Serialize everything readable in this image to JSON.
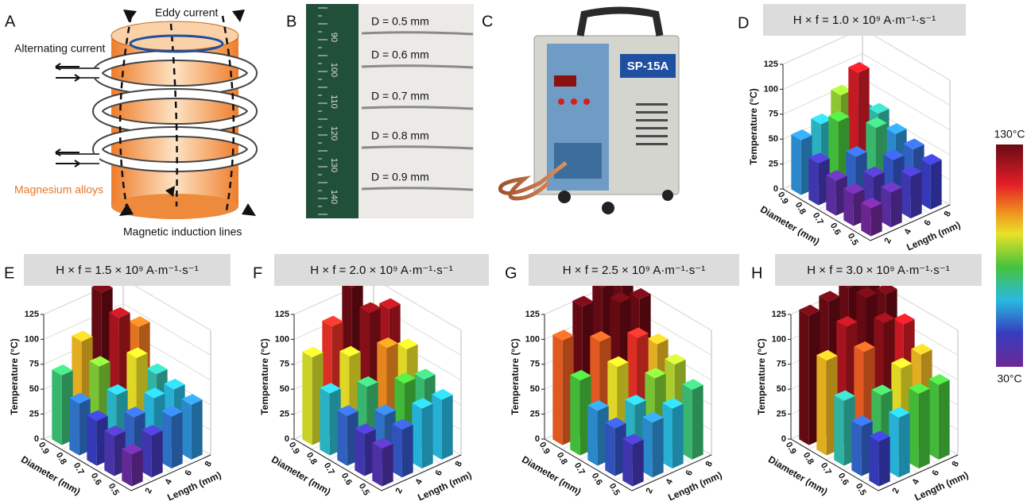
{
  "panel_a": {
    "letter": "A",
    "eddy": "Eddy current",
    "alternating": "Alternating current",
    "alloy": "Magnesium alloys",
    "lines": "Magnetic induction lines"
  },
  "panel_b": {
    "letter": "B",
    "wires": [
      "D = 0.5 mm",
      "D = 0.6 mm",
      "D = 0.7 mm",
      "D = 0.8 mm",
      "D = 0.9 mm"
    ],
    "ruler": [
      "90",
      "100",
      "110",
      "120",
      "130",
      "140"
    ]
  },
  "panel_c": {
    "letter": "C",
    "model": "SP-15A"
  },
  "colorbar": {
    "range": [
      30,
      130
    ],
    "ticks": [
      {
        "value": 130,
        "label": "130°C"
      },
      {
        "value": 30,
        "label": "30°C"
      }
    ]
  },
  "chart_data": [
    {
      "type": "bar3d",
      "letter": "D",
      "title": "H × f = 1.0 × 10⁹ A·m⁻¹·s⁻¹",
      "zlabel": "Temperature (°C)",
      "xlabel": "Diameter (mm)",
      "ylabel": "Length (mm)",
      "diameters": [
        0.9,
        0.8,
        0.7,
        0.6,
        0.5
      ],
      "lengths": [
        2,
        4,
        6,
        8
      ],
      "zlim": [
        0,
        125
      ],
      "zticks": [
        0,
        25,
        50,
        75,
        100,
        125
      ],
      "values": [
        [
          55,
          62,
          82,
          58
        ],
        [
          42,
          75,
          115,
          65
        ],
        [
          35,
          50,
          70,
          55
        ],
        [
          32,
          40,
          48,
          50
        ],
        [
          28,
          35,
          42,
          45
        ]
      ]
    },
    {
      "type": "bar3d",
      "letter": "E",
      "title": "H × f = 1.5 × 10⁹ A·m⁻¹·s⁻¹",
      "zlabel": "Temperature (°C)",
      "xlabel": "Diameter (mm)",
      "ylabel": "Length (mm)",
      "diameters": [
        0.9,
        0.8,
        0.7,
        0.6,
        0.5
      ],
      "lengths": [
        2,
        4,
        6,
        8
      ],
      "zlim": [
        0,
        125
      ],
      "zticks": [
        0,
        25,
        50,
        75,
        100,
        125
      ],
      "values": [
        [
          70,
          95,
          135,
          85
        ],
        [
          52,
          80,
          120,
          102
        ],
        [
          45,
          62,
          90,
          65
        ],
        [
          40,
          50,
          60,
          60
        ],
        [
          32,
          42,
          52,
          55
        ]
      ]
    },
    {
      "type": "bar3d",
      "letter": "F",
      "title": "H × f = 2.0 × 10⁹ A·m⁻¹·s⁻¹",
      "zlabel": "Temperature (°C)",
      "xlabel": "Diameter (mm)",
      "ylabel": "Length (mm)",
      "diameters": [
        0.9,
        0.8,
        0.7,
        0.6,
        0.5
      ],
      "lengths": [
        2,
        4,
        6,
        8
      ],
      "zlim": [
        0,
        125
      ],
      "zticks": [
        0,
        25,
        50,
        75,
        100,
        125
      ],
      "values": [
        [
          88,
          110,
          140,
          105
        ],
        [
          62,
          90,
          125,
          120
        ],
        [
          50,
          70,
          100,
          90
        ],
        [
          42,
          52,
          75,
          70
        ],
        [
          38,
          48,
          60,
          60
        ]
      ]
    },
    {
      "type": "bar3d",
      "letter": "G",
      "title": "H × f = 2.5 × 10⁹ A·m⁻¹·s⁻¹",
      "zlabel": "Temperature (°C)",
      "xlabel": "Diameter (mm)",
      "ylabel": "Length (mm)",
      "diameters": [
        0.9,
        0.8,
        0.7,
        0.6,
        0.5
      ],
      "lengths": [
        2,
        4,
        6,
        8
      ],
      "zlim": [
        0,
        125
      ],
      "zticks": [
        0,
        25,
        50,
        75,
        100,
        125
      ],
      "values": [
        [
          105,
          130,
          140,
          135
        ],
        [
          75,
          105,
          135,
          130
        ],
        [
          55,
          90,
          110,
          95
        ],
        [
          48,
          62,
          80,
          85
        ],
        [
          42,
          55,
          60,
          70
        ]
      ]
    },
    {
      "type": "bar3d",
      "letter": "H",
      "title": "H × f = 3.0 × 10⁹ A·m⁻¹·s⁻¹",
      "zlabel": "Temperature (°C)",
      "xlabel": "Diameter (mm)",
      "ylabel": "Length (mm)",
      "diameters": [
        0.9,
        0.8,
        0.7,
        0.6,
        0.5
      ],
      "lengths": [
        2,
        4,
        6,
        8
      ],
      "zlim": [
        0,
        125
      ],
      "zticks": [
        0,
        25,
        50,
        75,
        100,
        125
      ],
      "values": [
        [
          130,
          135,
          140,
          140
        ],
        [
          95,
          120,
          140,
          135
        ],
        [
          65,
          105,
          125,
          115
        ],
        [
          50,
          72,
          90,
          95
        ],
        [
          45,
          60,
          75,
          75
        ]
      ]
    }
  ]
}
